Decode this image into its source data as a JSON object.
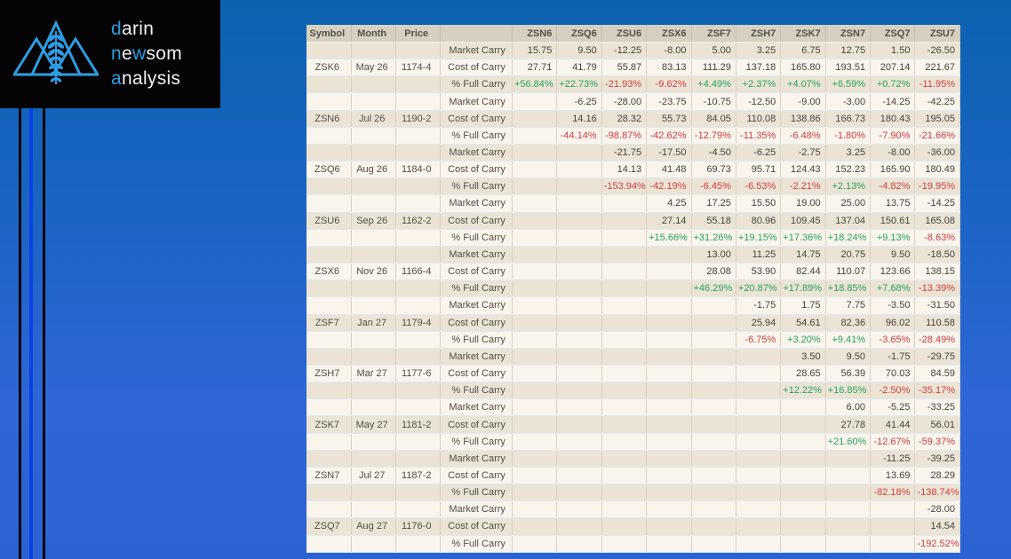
{
  "logo": {
    "word1": {
      "accent": "d",
      "rest": "arin"
    },
    "word2": {
      "p1": "n",
      "p2": "e",
      "p3": "w",
      "p4": "som"
    },
    "word3": {
      "accent": "a",
      "rest": "nalysis"
    },
    "accent_color": "#2d9de2"
  },
  "colors": {
    "background_top": "#0c62b1",
    "background_bottom": "#2c63d2",
    "logo_background": "#040404",
    "stripe_blue": "#0a41e6",
    "positive_value": "#27a35c",
    "negative_value": "#d43b3e",
    "header_background": "#d7d0c0",
    "row_dark": "#ebe4d5",
    "row_light": "#f9f5ed"
  },
  "table": {
    "headers": [
      "Symbol",
      "Month",
      "Price",
      "",
      "ZSN6",
      "ZSQ6",
      "ZSU6",
      "ZSX6",
      "ZSF7",
      "ZSH7",
      "ZSK7",
      "ZSN7",
      "ZSQ7",
      "ZSU7"
    ],
    "row_labels": [
      "Market Carry",
      "Cost of Carry",
      "% Full Carry"
    ],
    "groups": [
      {
        "symbol": "ZSK6",
        "month": "May 26",
        "price": "1174-4",
        "market_carry": [
          "15.75",
          "9.50",
          "-12.25",
          "-8.00",
          "5.00",
          "3.25",
          "6.75",
          "12.75",
          "1.50",
          "-26.50"
        ],
        "cost_of_carry": [
          "27.71",
          "41.79",
          "55.87",
          "83.13",
          "111.29",
          "137.18",
          "165.80",
          "193.51",
          "207.14",
          "221.67"
        ],
        "pct_full_carry": [
          "+56.84%",
          "+22.73%",
          "-21.93%",
          "-9.62%",
          "+4.49%",
          "+2.37%",
          "+4.07%",
          "+6.59%",
          "+0.72%",
          "-11.95%"
        ]
      },
      {
        "symbol": "ZSN6",
        "month": "Jul 26",
        "price": "1190-2",
        "market_carry": [
          "-6.25",
          "-28.00",
          "-23.75",
          "-10.75",
          "-12.50",
          "-9.00",
          "-3.00",
          "-14.25",
          "-42.25"
        ],
        "cost_of_carry": [
          "14.16",
          "28.32",
          "55.73",
          "84.05",
          "110.08",
          "138.86",
          "166.73",
          "180.43",
          "195.05"
        ],
        "pct_full_carry": [
          "-44.14%",
          "-98.87%",
          "-42.62%",
          "-12.79%",
          "-11.35%",
          "-6.48%",
          "-1.80%",
          "-7.90%",
          "-21.66%"
        ]
      },
      {
        "symbol": "ZSQ6",
        "month": "Aug 26",
        "price": "1184-0",
        "market_carry": [
          "-21.75",
          "-17.50",
          "-4.50",
          "-6.25",
          "-2.75",
          "3.25",
          "-8.00",
          "-36.00"
        ],
        "cost_of_carry": [
          "14.13",
          "41.48",
          "69.73",
          "95.71",
          "124.43",
          "152.23",
          "165.90",
          "180.49"
        ],
        "pct_full_carry": [
          "-153.94%",
          "-42.19%",
          "-6.45%",
          "-6.53%",
          "-2.21%",
          "+2.13%",
          "-4.82%",
          "-19.95%"
        ]
      },
      {
        "symbol": "ZSU6",
        "month": "Sep 26",
        "price": "1162-2",
        "market_carry": [
          "4.25",
          "17.25",
          "15.50",
          "19.00",
          "25.00",
          "13.75",
          "-14.25"
        ],
        "cost_of_carry": [
          "27.14",
          "55.18",
          "80.96",
          "109.45",
          "137.04",
          "150.61",
          "165.08"
        ],
        "pct_full_carry": [
          "+15.66%",
          "+31.26%",
          "+19.15%",
          "+17.36%",
          "+18.24%",
          "+9.13%",
          "-8.63%"
        ]
      },
      {
        "symbol": "ZSX6",
        "month": "Nov 26",
        "price": "1166-4",
        "market_carry": [
          "13.00",
          "11.25",
          "14.75",
          "20.75",
          "9.50",
          "-18.50"
        ],
        "cost_of_carry": [
          "28.08",
          "53.90",
          "82.44",
          "110.07",
          "123.66",
          "138.15"
        ],
        "pct_full_carry": [
          "+46.29%",
          "+20.87%",
          "+17.89%",
          "+18.85%",
          "+7.68%",
          "-13.39%"
        ]
      },
      {
        "symbol": "ZSF7",
        "month": "Jan 27",
        "price": "1179-4",
        "market_carry": [
          "-1.75",
          "1.75",
          "7.75",
          "-3.50",
          "-31.50"
        ],
        "cost_of_carry": [
          "25.94",
          "54.61",
          "82.36",
          "96.02",
          "110.58"
        ],
        "pct_full_carry": [
          "-6.75%",
          "+3.20%",
          "+9.41%",
          "-3.65%",
          "-28.49%"
        ]
      },
      {
        "symbol": "ZSH7",
        "month": "Mar 27",
        "price": "1177-6",
        "market_carry": [
          "3.50",
          "9.50",
          "-1.75",
          "-29.75"
        ],
        "cost_of_carry": [
          "28.65",
          "56.39",
          "70.03",
          "84.59"
        ],
        "pct_full_carry": [
          "+12.22%",
          "+16.85%",
          "-2.50%",
          "-35.17%"
        ]
      },
      {
        "symbol": "ZSK7",
        "month": "May 27",
        "price": "1181-2",
        "market_carry": [
          "6.00",
          "-5.25",
          "-33.25"
        ],
        "cost_of_carry": [
          "27.78",
          "41.44",
          "56.01"
        ],
        "pct_full_carry": [
          "+21.60%",
          "-12.67%",
          "-59.37%"
        ]
      },
      {
        "symbol": "ZSN7",
        "month": "Jul 27",
        "price": "1187-2",
        "market_carry": [
          "-11.25",
          "-39.25"
        ],
        "cost_of_carry": [
          "13.69",
          "28.29"
        ],
        "pct_full_carry": [
          "-82.18%",
          "-138.74%"
        ]
      },
      {
        "symbol": "ZSQ7",
        "month": "Aug 27",
        "price": "1176-0",
        "market_carry": [
          "-28.00"
        ],
        "cost_of_carry": [
          "14.54"
        ],
        "pct_full_carry": [
          "-192.52%"
        ]
      }
    ]
  }
}
